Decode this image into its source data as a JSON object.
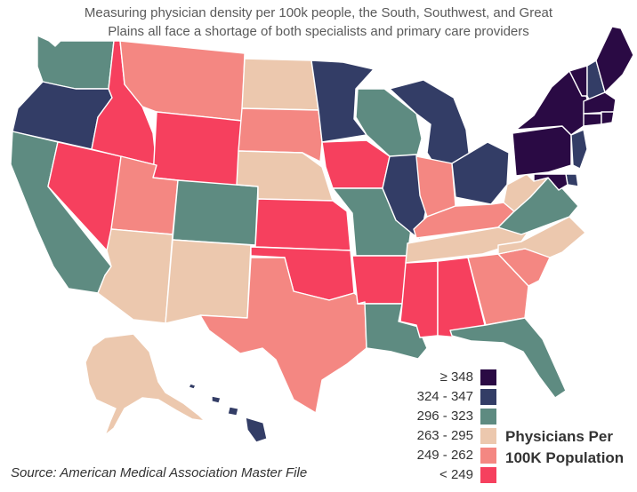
{
  "subtitle": {
    "line1": "Measuring physician density per 100k people, the South, Southwest, and Great",
    "line2": "Plains all face a shortage of both specialists and primary care providers"
  },
  "source": "Source: American Medical Association Master File",
  "legend": {
    "title_line1": "Physicians Per",
    "title_line2": "100K Population",
    "bins": [
      {
        "label": "≥ 348",
        "color": "#2a0a44"
      },
      {
        "label": "324 - 347",
        "color": "#333d66"
      },
      {
        "label": "296 - 323",
        "color": "#5e8b81"
      },
      {
        "label": "263 - 295",
        "color": "#ecc8ae"
      },
      {
        "label": "249 - 262",
        "color": "#f48782"
      },
      {
        "label": "< 249",
        "color": "#f6405e"
      }
    ]
  },
  "states": {
    "WA": 2,
    "OR": 1,
    "CA": 2,
    "NV": 5,
    "ID": 5,
    "MT": 4,
    "WY": 5,
    "UT": 4,
    "AZ": 3,
    "NM": 3,
    "CO": 2,
    "ND": 3,
    "SD": 4,
    "NE": 3,
    "KS": 5,
    "OK": 5,
    "TX": 4,
    "MN": 1,
    "IA": 5,
    "MO": 2,
    "AR": 5,
    "LA": 2,
    "WI": 2,
    "IL": 1,
    "MI": 1,
    "IN": 4,
    "OH": 1,
    "KY": 4,
    "TN": 3,
    "MS": 5,
    "AL": 5,
    "GA": 4,
    "FL": 2,
    "SC": 4,
    "NC": 3,
    "VA": 2,
    "WV": 3,
    "PA": 0,
    "NY": 0,
    "VT": 0,
    "NH": 1,
    "ME": 0,
    "MA": 0,
    "CT": 0,
    "RI": 0,
    "NJ": 1,
    "DE": 1,
    "MD": 0,
    "AK": 3,
    "HI": 1
  }
}
